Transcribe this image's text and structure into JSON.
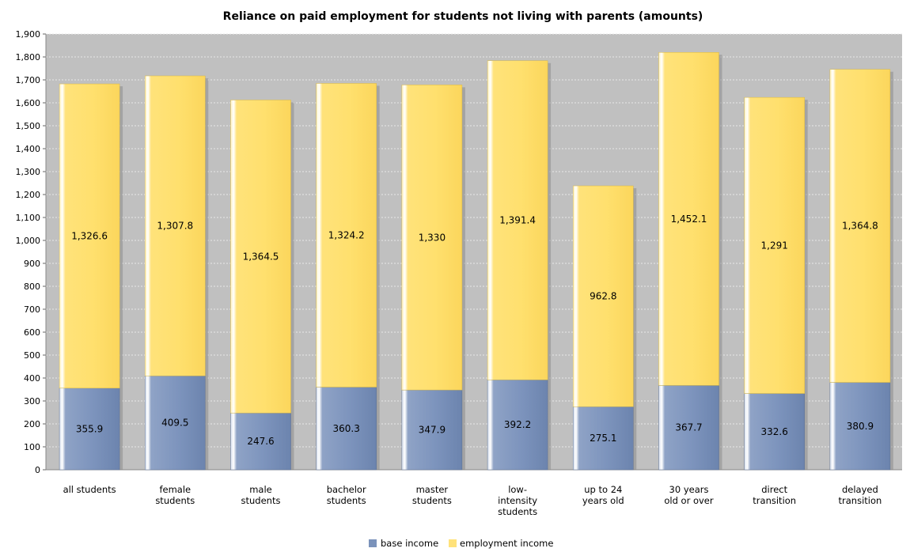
{
  "chart_data": {
    "type": "bar",
    "stacked": true,
    "title": "Reliance on paid employment for students not living with parents (amounts)",
    "xlabel": "",
    "ylabel": "",
    "ylim": [
      0,
      1900
    ],
    "yticks": [
      0,
      100,
      200,
      300,
      400,
      500,
      600,
      700,
      800,
      900,
      1000,
      1100,
      1200,
      1300,
      1400,
      1500,
      1600,
      1700,
      1800,
      1900
    ],
    "ytick_labels": [
      "0",
      "100",
      "200",
      "300",
      "400",
      "500",
      "600",
      "700",
      "800",
      "900",
      "1,000",
      "1,100",
      "1,200",
      "1,300",
      "1,400",
      "1,500",
      "1,600",
      "1,700",
      "1,800",
      "1,900"
    ],
    "grid": true,
    "legend_position": "bottom",
    "categories": [
      "all students",
      "female students",
      "male students",
      "bachelor students",
      "master students",
      "low-intensity students",
      "up to 24 years old",
      "30 years old or over",
      "direct transition",
      "delayed transition"
    ],
    "category_lines": [
      [
        "all students"
      ],
      [
        "female",
        "students"
      ],
      [
        "male",
        "students"
      ],
      [
        "bachelor",
        "students"
      ],
      [
        "master",
        "students"
      ],
      [
        "low-",
        "intensity",
        "students"
      ],
      [
        "up to 24",
        "years old"
      ],
      [
        "30 years",
        "old or over"
      ],
      [
        "direct",
        "transition"
      ],
      [
        "delayed",
        "transition"
      ]
    ],
    "series": [
      {
        "name": "base income",
        "color": "#7b93bb",
        "values": [
          355.9,
          409.5,
          247.6,
          360.3,
          347.9,
          392.2,
          275.1,
          367.7,
          332.6,
          380.9
        ],
        "labels": [
          "355.9",
          "409.5",
          "247.6",
          "360.3",
          "347.9",
          "392.2",
          "275.1",
          "367.7",
          "332.6",
          "380.9"
        ]
      },
      {
        "name": "employment income",
        "color": "#ffe27a",
        "values": [
          1326.6,
          1307.8,
          1364.5,
          1324.2,
          1330,
          1391.4,
          962.8,
          1452.1,
          1291,
          1364.8
        ],
        "labels": [
          "1,326.6",
          "1,307.8",
          "1,364.5",
          "1,324.2",
          "1,330",
          "1,391.4",
          "962.8",
          "1,452.1",
          "1,291",
          "1,364.8"
        ]
      }
    ],
    "plot_background": "#c0c0c0"
  }
}
